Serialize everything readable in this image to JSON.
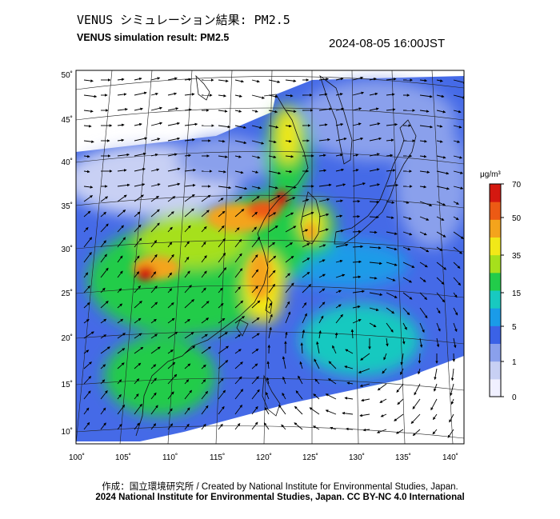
{
  "title_jp": "VENUS シミュレーション結果: PM2.5",
  "title_en": "VENUS simulation result: PM2.5",
  "timestamp": "2024-08-05 16:00JST",
  "colorbar": {
    "unit": "μg/m³",
    "ticks": [
      "70",
      "50",
      "35",
      "15",
      "5",
      "1",
      "0"
    ],
    "colors": [
      "#f0f0ff",
      "#c8d0f4",
      "#8aa0ec",
      "#3b62e6",
      "#1a9be8",
      "#18c9c0",
      "#22cc4a",
      "#a6e01c",
      "#f2e818",
      "#f4a41c",
      "#ec5a14",
      "#d41810"
    ]
  },
  "lon_labels": [
    "100˚",
    "105˚",
    "110˚",
    "115˚",
    "120˚",
    "125˚",
    "130˚",
    "135˚",
    "140˚"
  ],
  "lat_labels": [
    "50˚",
    "45˚",
    "40˚",
    "35˚",
    "30˚",
    "25˚",
    "20˚",
    "15˚",
    "10˚"
  ],
  "credit_line1": "作成：国立環境研究所 / Created by National Institute for Environmental Studies, Japan.",
  "credit_line2": "2024 National Institute for Environmental Studies, Japan. CC BY-NC 4.0 International"
}
